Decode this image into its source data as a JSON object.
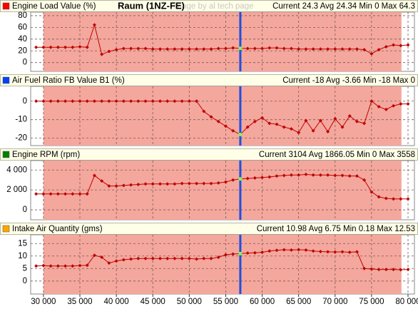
{
  "title": "Raum (1NZ-FE)",
  "watermark": "image by al tech page",
  "cursor": 57000,
  "highlight_range": [
    30000,
    79100
  ],
  "chart_data": [
    {
      "type": "line",
      "title": "Engine Load Value (%)",
      "stats": "Current 24.3 Avg 24.34 Min 0 Max 64.3",
      "marker_color": "#ff0000",
      "color": "#c00000",
      "x": [
        29000,
        30000,
        31000,
        32000,
        33000,
        34000,
        35000,
        36000,
        37000,
        38000,
        39000,
        40000,
        41000,
        42000,
        43000,
        44000,
        45000,
        46000,
        47000,
        48000,
        49000,
        50000,
        51000,
        52000,
        53000,
        54000,
        55000,
        56000,
        57000,
        58000,
        59000,
        60000,
        61000,
        62000,
        63000,
        64000,
        65000,
        66000,
        67000,
        68000,
        69000,
        70000,
        71000,
        72000,
        73000,
        74000,
        75000,
        76000,
        77000,
        78000,
        79000,
        80000
      ],
      "values": [
        26,
        26,
        26,
        26,
        26,
        26,
        27,
        26,
        64.3,
        14,
        19,
        22,
        24,
        24,
        24,
        24,
        23,
        23,
        23,
        23,
        23,
        23,
        23,
        23,
        23,
        24,
        24,
        25,
        24.3,
        24,
        24,
        24,
        25,
        25,
        24,
        24,
        23,
        23,
        23,
        23,
        23,
        23,
        23,
        23,
        23,
        22,
        15,
        22,
        27,
        30,
        29,
        30
      ],
      "xlim": [
        28250,
        80880
      ],
      "ylim": [
        -15,
        86
      ],
      "yticks": [
        0,
        20,
        40,
        60,
        80
      ],
      "xticks": [
        {
          "value": 30000,
          "label": "30 000"
        },
        {
          "value": 35000,
          "label": "35 000"
        },
        {
          "value": 40000,
          "label": "40 000"
        },
        {
          "value": 45000,
          "label": "45 000"
        },
        {
          "value": 50000,
          "label": "50 000"
        },
        {
          "value": 55000,
          "label": "55 000"
        },
        {
          "value": 60000,
          "label": "60 000"
        },
        {
          "value": 65000,
          "label": "65 000"
        },
        {
          "value": 70000,
          "label": "70 000"
        },
        {
          "value": 75000,
          "label": "75 000"
        },
        {
          "value": 80000,
          "label": "80 000"
        }
      ]
    },
    {
      "type": "line",
      "title": "Air Fuel Ratio FB Value B1 (%)",
      "stats": "Current -18 Avg -3.66 Min -18 Max 0",
      "marker_color": "#0040ff",
      "color": "#c00000",
      "x": [
        29000,
        30000,
        31000,
        32000,
        33000,
        34000,
        35000,
        36000,
        37000,
        38000,
        39000,
        40000,
        41000,
        42000,
        43000,
        44000,
        45000,
        46000,
        47000,
        48000,
        49000,
        50000,
        51000,
        52000,
        53000,
        54000,
        55000,
        56000,
        57000,
        58000,
        59000,
        60000,
        61000,
        62000,
        63000,
        64000,
        65000,
        66000,
        67000,
        68000,
        69000,
        70000,
        71000,
        72000,
        73000,
        74000,
        75000,
        76000,
        77000,
        78000,
        79000,
        80000
      ],
      "values": [
        0,
        0,
        0,
        0,
        0,
        0,
        0,
        0,
        0,
        0,
        0,
        0,
        0,
        0,
        0,
        0,
        0,
        0,
        0,
        0,
        0,
        0,
        0,
        -5.5,
        -8.5,
        -11,
        -13.5,
        -16,
        -18,
        -14,
        -11,
        -9,
        -12,
        -12.5,
        -14,
        -15,
        -17,
        -10.5,
        -16,
        -10.5,
        -16.5,
        -9.5,
        -14,
        -8,
        -11,
        -12,
        0,
        -3,
        -4.5,
        -2.5,
        -1.5,
        -1.5
      ],
      "xlim": [
        28250,
        80880
      ],
      "ylim": [
        -24,
        8
      ],
      "yticks": [
        -20,
        -10,
        0
      ],
      "xticks": [
        {
          "value": 30000,
          "label": "30 000"
        },
        {
          "value": 35000,
          "label": "35 000"
        },
        {
          "value": 40000,
          "label": "40 000"
        },
        {
          "value": 45000,
          "label": "45 000"
        },
        {
          "value": 50000,
          "label": "50 000"
        },
        {
          "value": 55000,
          "label": "55 000"
        },
        {
          "value": 60000,
          "label": "60 000"
        },
        {
          "value": 65000,
          "label": "65 000"
        },
        {
          "value": 70000,
          "label": "70 000"
        },
        {
          "value": 75000,
          "label": "75 000"
        },
        {
          "value": 80000,
          "label": "80 000"
        }
      ]
    },
    {
      "type": "line",
      "title": "Engine RPM (rpm)",
      "stats": "Current 3104 Avg 1866.05 Min 0 Max 3558",
      "marker_color": "#008000",
      "color": "#c00000",
      "x": [
        29000,
        30000,
        31000,
        32000,
        33000,
        34000,
        35000,
        36000,
        37000,
        38000,
        39000,
        40000,
        41000,
        42000,
        43000,
        44000,
        45000,
        46000,
        47000,
        48000,
        49000,
        50000,
        51000,
        52000,
        53000,
        54000,
        55000,
        56000,
        57000,
        58000,
        59000,
        60000,
        61000,
        62000,
        63000,
        64000,
        65000,
        66000,
        67000,
        68000,
        69000,
        70000,
        71000,
        72000,
        73000,
        74000,
        75000,
        76000,
        77000,
        78000,
        79000,
        80000
      ],
      "values": [
        1600,
        1600,
        1600,
        1600,
        1600,
        1600,
        1600,
        1600,
        3450,
        2900,
        2400,
        2400,
        2450,
        2500,
        2550,
        2600,
        2600,
        2600,
        2600,
        2600,
        2650,
        2650,
        2650,
        2650,
        2650,
        2700,
        2800,
        3000,
        3104,
        3150,
        3200,
        3250,
        3300,
        3400,
        3450,
        3500,
        3500,
        3558,
        3500,
        3500,
        3500,
        3450,
        3450,
        3400,
        3400,
        3000,
        1800,
        1300,
        1150,
        1100,
        1100,
        1100
      ],
      "xlim": [
        28250,
        80880
      ],
      "ylim": [
        -1000,
        4950
      ],
      "yticks": [
        0,
        {
          "value": 2000,
          "label": "2 000"
        },
        {
          "value": 4000,
          "label": "4 000"
        }
      ],
      "xticks": [
        {
          "value": 30000,
          "label": "30 000"
        },
        {
          "value": 35000,
          "label": "35 000"
        },
        {
          "value": 40000,
          "label": "40 000"
        },
        {
          "value": 45000,
          "label": "45 000"
        },
        {
          "value": 50000,
          "label": "50 000"
        },
        {
          "value": 55000,
          "label": "55 000"
        },
        {
          "value": 60000,
          "label": "60 000"
        },
        {
          "value": 65000,
          "label": "65 000"
        },
        {
          "value": 70000,
          "label": "70 000"
        },
        {
          "value": 75000,
          "label": "75 000"
        },
        {
          "value": 80000,
          "label": "80 000"
        }
      ]
    },
    {
      "type": "line",
      "title": "Intake Air Quantity (gms)",
      "stats": "Current 10.98 Avg 6.75 Min 0.18 Max 12.53",
      "marker_color": "#ffa500",
      "color": "#c00000",
      "x": [
        29000,
        30000,
        31000,
        32000,
        33000,
        34000,
        35000,
        36000,
        37000,
        38000,
        39000,
        40000,
        41000,
        42000,
        43000,
        44000,
        45000,
        46000,
        47000,
        48000,
        49000,
        50000,
        51000,
        52000,
        53000,
        54000,
        55000,
        56000,
        57000,
        58000,
        59000,
        60000,
        61000,
        62000,
        63000,
        64000,
        65000,
        66000,
        67000,
        68000,
        69000,
        70000,
        71000,
        72000,
        73000,
        74000,
        75000,
        76000,
        77000,
        78000,
        79000,
        80000
      ],
      "values": [
        6,
        6.2,
        6,
        6,
        6,
        6,
        6.2,
        6.3,
        10.3,
        9.5,
        7.2,
        8,
        8.5,
        8.8,
        9,
        9,
        9,
        9,
        9,
        9,
        9,
        9,
        8.8,
        9,
        9,
        9.5,
        10.5,
        10.8,
        10.98,
        11.2,
        11.3,
        11.5,
        12,
        12.3,
        12.5,
        12.4,
        12.53,
        12.4,
        12,
        11.8,
        11.7,
        11.6,
        11.7,
        11.5,
        11.7,
        5,
        4.8,
        4.6,
        4.6,
        4.6,
        4.5,
        4.6
      ],
      "xlim": [
        28250,
        80880
      ],
      "ylim": [
        -5.2,
        18.5
      ],
      "yticks": [
        0,
        5,
        10,
        15
      ],
      "xticks": [
        {
          "value": 30000,
          "label": "30 000"
        },
        {
          "value": 35000,
          "label": "35 000"
        },
        {
          "value": 40000,
          "label": "40 000"
        },
        {
          "value": 45000,
          "label": "45 000"
        },
        {
          "value": 50000,
          "label": "50 000"
        },
        {
          "value": 55000,
          "label": "55 000"
        },
        {
          "value": 60000,
          "label": "60 000"
        },
        {
          "value": 65000,
          "label": "65 000"
        },
        {
          "value": 70000,
          "label": "70 000"
        },
        {
          "value": 75000,
          "label": "75 000"
        },
        {
          "value": 80000,
          "label": "80 000"
        }
      ]
    }
  ]
}
